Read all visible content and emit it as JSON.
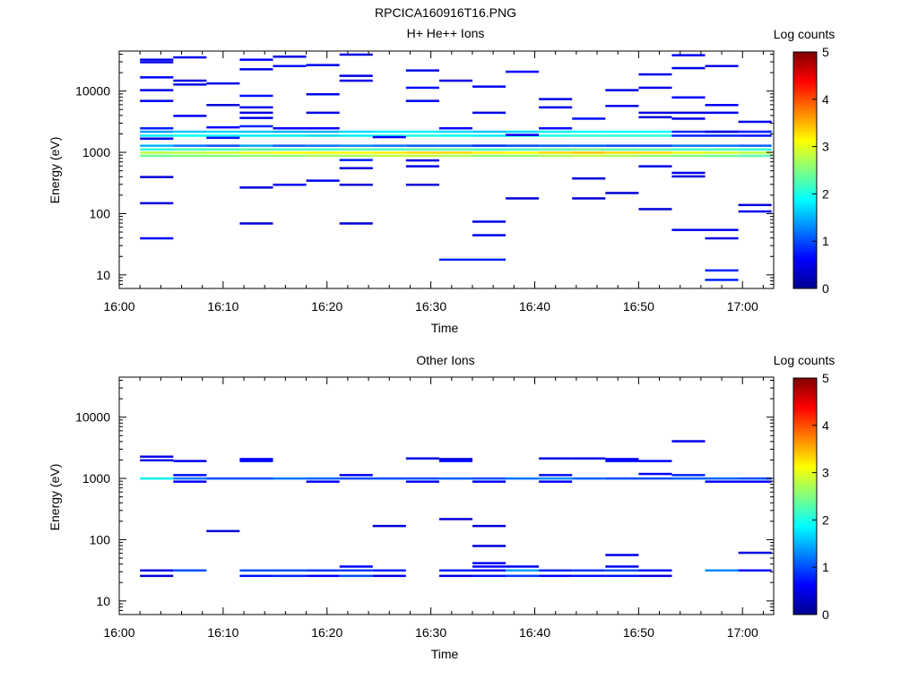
{
  "figure_title": "RPCICA160916T16.PNG",
  "chart_data": [
    {
      "type": "heatmap",
      "title": "H+ He++ Ions",
      "xlabel": "Time",
      "ylabel": "Energy (eV)",
      "colorbar_label": "Log counts",
      "colorbar_ticks": [
        "0",
        "1",
        "2",
        "3",
        "4",
        "5"
      ],
      "colorbar_range": [
        0,
        5
      ],
      "colormap": "jet",
      "x_ticks": [
        "16:00",
        "16:10",
        "16:20",
        "16:30",
        "16:40",
        "16:50",
        "17:00"
      ],
      "xlim_minutes": [
        0,
        63
      ],
      "y_scale": "log",
      "y_ticks": [
        "10",
        "100",
        "1000",
        "10000"
      ],
      "ylim": [
        6,
        45000
      ],
      "bin_minutes": 3.2,
      "cells": [
        {
          "t": 2,
          "e": 33000,
          "v": 0.5
        },
        {
          "t": 2,
          "e": 30000,
          "v": 0.5
        },
        {
          "t": 2,
          "e": 17000,
          "v": 0.6
        },
        {
          "t": 2,
          "e": 10500,
          "v": 0.5
        },
        {
          "t": 2,
          "e": 7000,
          "v": 0.5
        },
        {
          "t": 2,
          "e": 2500,
          "v": 0.8
        },
        {
          "t": 2,
          "e": 1700,
          "v": 0.5
        },
        {
          "t": 2,
          "e": 400,
          "v": 0.4
        },
        {
          "t": 2,
          "e": 150,
          "v": 0.4
        },
        {
          "t": 2,
          "e": 40,
          "v": 0.6
        },
        {
          "t": 5.2,
          "e": 36000,
          "v": 0.5
        },
        {
          "t": 5.2,
          "e": 15000,
          "v": 0.5
        },
        {
          "t": 5.2,
          "e": 13000,
          "v": 0.5
        },
        {
          "t": 5.2,
          "e": 4000,
          "v": 0.6
        },
        {
          "t": 8.4,
          "e": 13500,
          "v": 0.5
        },
        {
          "t": 8.4,
          "e": 6000,
          "v": 0.4
        },
        {
          "t": 8.4,
          "e": 2600,
          "v": 0.6
        },
        {
          "t": 8.4,
          "e": 1750,
          "v": 0.7
        },
        {
          "t": 11.6,
          "e": 33000,
          "v": 0.6
        },
        {
          "t": 11.6,
          "e": 23000,
          "v": 0.5
        },
        {
          "t": 11.6,
          "e": 8500,
          "v": 0.7
        },
        {
          "t": 11.6,
          "e": 5500,
          "v": 0.5
        },
        {
          "t": 11.6,
          "e": 4500,
          "v": 0.5
        },
        {
          "t": 11.6,
          "e": 3700,
          "v": 0.5
        },
        {
          "t": 11.6,
          "e": 2700,
          "v": 0.8
        },
        {
          "t": 11.6,
          "e": 270,
          "v": 0.4
        },
        {
          "t": 11.6,
          "e": 70,
          "v": 0.4
        },
        {
          "t": 14.8,
          "e": 37000,
          "v": 0.5
        },
        {
          "t": 14.8,
          "e": 26000,
          "v": 0.7
        },
        {
          "t": 14.8,
          "e": 2500,
          "v": 0.6
        },
        {
          "t": 14.8,
          "e": 300,
          "v": 0.6
        },
        {
          "t": 18,
          "e": 27000,
          "v": 0.5
        },
        {
          "t": 18,
          "e": 9000,
          "v": 0.5
        },
        {
          "t": 18,
          "e": 4500,
          "v": 0.5
        },
        {
          "t": 18,
          "e": 2500,
          "v": 0.6
        },
        {
          "t": 18,
          "e": 350,
          "v": 0.5
        },
        {
          "t": 21.2,
          "e": 40000,
          "v": 0.5
        },
        {
          "t": 21.2,
          "e": 18000,
          "v": 0.5
        },
        {
          "t": 21.2,
          "e": 15000,
          "v": 0.5
        },
        {
          "t": 21.2,
          "e": 760,
          "v": 0.8
        },
        {
          "t": 21.2,
          "e": 560,
          "v": 0.4
        },
        {
          "t": 21.2,
          "e": 300,
          "v": 0.4
        },
        {
          "t": 21.2,
          "e": 70,
          "v": 0.4
        },
        {
          "t": 24.4,
          "e": 1800,
          "v": 0.6
        },
        {
          "t": 27.6,
          "e": 22000,
          "v": 0.5
        },
        {
          "t": 27.6,
          "e": 11500,
          "v": 0.7
        },
        {
          "t": 27.6,
          "e": 7000,
          "v": 0.5
        },
        {
          "t": 27.6,
          "e": 750,
          "v": 0.5
        },
        {
          "t": 27.6,
          "e": 600,
          "v": 0.5
        },
        {
          "t": 27.6,
          "e": 300,
          "v": 0.4
        },
        {
          "t": 30.8,
          "e": 15000,
          "v": 0.5
        },
        {
          "t": 30.8,
          "e": 2500,
          "v": 0.6
        },
        {
          "t": 30.8,
          "e": 18,
          "v": 0.8
        },
        {
          "t": 34,
          "e": 12000,
          "v": 0.5
        },
        {
          "t": 34,
          "e": 4500,
          "v": 0.5
        },
        {
          "t": 34,
          "e": 1300,
          "v": 0.9
        },
        {
          "t": 34,
          "e": 75,
          "v": 0.5
        },
        {
          "t": 34,
          "e": 45,
          "v": 0.5
        },
        {
          "t": 34,
          "e": 18,
          "v": 0.8
        },
        {
          "t": 37.2,
          "e": 21000,
          "v": 0.6
        },
        {
          "t": 37.2,
          "e": 1950,
          "v": 0.6
        },
        {
          "t": 37.2,
          "e": 180,
          "v": 0.4
        },
        {
          "t": 40.4,
          "e": 7500,
          "v": 0.5
        },
        {
          "t": 40.4,
          "e": 5500,
          "v": 0.5
        },
        {
          "t": 40.4,
          "e": 2500,
          "v": 0.7
        },
        {
          "t": 43.6,
          "e": 3600,
          "v": 0.7
        },
        {
          "t": 43.6,
          "e": 380,
          "v": 0.4
        },
        {
          "t": 43.6,
          "e": 180,
          "v": 0.4
        },
        {
          "t": 46.8,
          "e": 10500,
          "v": 0.5
        },
        {
          "t": 46.8,
          "e": 5800,
          "v": 0.5
        },
        {
          "t": 46.8,
          "e": 220,
          "v": 0.4
        },
        {
          "t": 50,
          "e": 19000,
          "v": 0.5
        },
        {
          "t": 50,
          "e": 11500,
          "v": 0.5
        },
        {
          "t": 50,
          "e": 4500,
          "v": 0.5
        },
        {
          "t": 50,
          "e": 3800,
          "v": 0.5
        },
        {
          "t": 50,
          "e": 600,
          "v": 0.5
        },
        {
          "t": 50,
          "e": 120,
          "v": 0.4
        },
        {
          "t": 53.2,
          "e": 39000,
          "v": 0.6
        },
        {
          "t": 53.2,
          "e": 24000,
          "v": 0.5
        },
        {
          "t": 53.2,
          "e": 8000,
          "v": 0.6
        },
        {
          "t": 53.2,
          "e": 4500,
          "v": 0.5
        },
        {
          "t": 53.2,
          "e": 3600,
          "v": 0.5
        },
        {
          "t": 53.2,
          "e": 470,
          "v": 0.5
        },
        {
          "t": 53.2,
          "e": 410,
          "v": 0.4
        },
        {
          "t": 53.2,
          "e": 55,
          "v": 0.5
        },
        {
          "t": 56.4,
          "e": 26000,
          "v": 0.5
        },
        {
          "t": 56.4,
          "e": 6000,
          "v": 0.6
        },
        {
          "t": 56.4,
          "e": 4500,
          "v": 0.5
        },
        {
          "t": 56.4,
          "e": 2200,
          "v": 0.5
        },
        {
          "t": 56.4,
          "e": 55,
          "v": 0.5
        },
        {
          "t": 56.4,
          "e": 40,
          "v": 0.5
        },
        {
          "t": 56.4,
          "e": 12,
          "v": 0.8
        },
        {
          "t": 56.4,
          "e": 8.4,
          "v": 0.8
        },
        {
          "t": 59.6,
          "e": 3200,
          "v": 0.5
        },
        {
          "t": 59.6,
          "e": 2200,
          "v": 0.8
        },
        {
          "t": 59.6,
          "e": 140,
          "v": 0.4
        },
        {
          "t": 59.6,
          "e": 110,
          "v": 0.5
        }
      ],
      "bands": [
        {
          "e": 2200,
          "vals": [
            1.4,
            1.6,
            1.7,
            1.6,
            1.5,
            1.5,
            1.7,
            1.8,
            1.8,
            1.7,
            1.6,
            1.7,
            1.8,
            1.9,
            1.9,
            1.9,
            0.8,
            0.7,
            0.8
          ]
        },
        {
          "e": 1900,
          "vals": [
            1.8,
            1.9,
            1.9,
            1.8,
            1.8,
            1.7,
            1.8,
            2.0,
            2.0,
            1.9,
            1.8,
            1.9,
            2.0,
            2.1,
            2.1,
            2.1,
            0.8,
            0.8,
            0.7
          ]
        },
        {
          "e": 1300,
          "vals": [
            1.5,
            1.2,
            1.0,
            1.4,
            1.1,
            1.2,
            1.3,
            1.2,
            1.1,
            1.1,
            1.0,
            1.0,
            1.1,
            1.1,
            1.0,
            1.0,
            1.2,
            1.2,
            1.1
          ]
        },
        {
          "e": 1130,
          "vals": [
            2.1,
            2.2,
            2.2,
            2.3,
            2.2,
            2.2,
            2.3,
            2.2,
            2.3,
            2.3,
            2.2,
            2.2,
            2.3,
            2.4,
            2.3,
            2.3,
            2.2,
            2.2,
            2.1
          ]
        },
        {
          "e": 1000,
          "vals": [
            2.8,
            2.8,
            2.9,
            3.0,
            3.1,
            3.1,
            3.1,
            3.2,
            3.3,
            3.3,
            3.2,
            3.1,
            3.3,
            3.4,
            3.3,
            3.3,
            3.0,
            2.9,
            2.8
          ]
        },
        {
          "e": 890,
          "vals": [
            2.4,
            2.5,
            2.5,
            2.6,
            2.6,
            2.7,
            2.7,
            2.8,
            2.8,
            2.7,
            2.6,
            2.6,
            2.7,
            2.8,
            2.7,
            2.6,
            2.5,
            2.4,
            2.3
          ]
        }
      ]
    },
    {
      "type": "heatmap",
      "title": "Other Ions",
      "xlabel": "Time",
      "ylabel": "Energy (eV)",
      "colorbar_label": "Log counts",
      "colorbar_ticks": [
        "0",
        "1",
        "2",
        "3",
        "4",
        "5"
      ],
      "colorbar_range": [
        0,
        5
      ],
      "colormap": "jet",
      "x_ticks": [
        "16:00",
        "16:10",
        "16:20",
        "16:30",
        "16:40",
        "16:50",
        "17:00"
      ],
      "xlim_minutes": [
        0,
        63
      ],
      "y_scale": "log",
      "y_ticks": [
        "10",
        "100",
        "1000",
        "10000"
      ],
      "ylim": [
        6,
        45000
      ],
      "bin_minutes": 3.2,
      "cells": [
        {
          "t": 2,
          "e": 2300,
          "v": 0.5
        },
        {
          "t": 2,
          "e": 2000,
          "v": 0.5
        },
        {
          "t": 5.2,
          "e": 1950,
          "v": 0.5
        },
        {
          "t": 5.2,
          "e": 1150,
          "v": 0.7
        },
        {
          "t": 5.2,
          "e": 900,
          "v": 0.6
        },
        {
          "t": 8.4,
          "e": 140,
          "v": 0.4
        },
        {
          "t": 11.6,
          "e": 2100,
          "v": 0.6
        },
        {
          "t": 11.6,
          "e": 1950,
          "v": 0.7
        },
        {
          "t": 18,
          "e": 900,
          "v": 0.6
        },
        {
          "t": 21.2,
          "e": 1150,
          "v": 0.6
        },
        {
          "t": 24.4,
          "e": 170,
          "v": 0.4
        },
        {
          "t": 27.6,
          "e": 2150,
          "v": 0.5
        },
        {
          "t": 27.6,
          "e": 900,
          "v": 0.6
        },
        {
          "t": 30.8,
          "e": 2100,
          "v": 0.5
        },
        {
          "t": 30.8,
          "e": 1950,
          "v": 0.7
        },
        {
          "t": 30.8,
          "e": 220,
          "v": 0.4
        },
        {
          "t": 34,
          "e": 170,
          "v": 0.4
        },
        {
          "t": 34,
          "e": 80,
          "v": 0.4
        },
        {
          "t": 34,
          "e": 900,
          "v": 0.6
        },
        {
          "t": 40.4,
          "e": 2150,
          "v": 0.5
        },
        {
          "t": 40.4,
          "e": 1150,
          "v": 0.7
        },
        {
          "t": 40.4,
          "e": 900,
          "v": 0.6
        },
        {
          "t": 43.6,
          "e": 2150,
          "v": 0.5
        },
        {
          "t": 46.8,
          "e": 2100,
          "v": 0.6
        },
        {
          "t": 46.8,
          "e": 1950,
          "v": 0.7
        },
        {
          "t": 46.8,
          "e": 57,
          "v": 0.5
        },
        {
          "t": 50,
          "e": 1950,
          "v": 0.6
        },
        {
          "t": 50,
          "e": 1200,
          "v": 0.6
        },
        {
          "t": 53.2,
          "e": 4100,
          "v": 0.5
        },
        {
          "t": 53.2,
          "e": 1150,
          "v": 0.8
        },
        {
          "t": 56.4,
          "e": 900,
          "v": 0.6
        },
        {
          "t": 59.6,
          "e": 62,
          "v": 0.5
        },
        {
          "t": 59.6,
          "e": 900,
          "v": 0.6
        }
      ],
      "bands": [
        {
          "e": 1010,
          "vals": [
            1.8,
            1.2,
            1.0,
            1.0,
            1.2,
            1.1,
            1.0,
            1.0,
            1.0,
            1.1,
            1.0,
            1.2,
            1.3,
            1.1,
            1.0,
            1.0,
            1.1,
            1.1,
            1.0
          ]
        },
        {
          "e": 32,
          "vals": [
            0.5,
            1.0,
            null,
            1.0,
            1.0,
            0.9,
            0.9,
            0.8,
            null,
            0.8,
            0.7,
            1.4,
            0.8,
            0.9,
            1.0,
            0.7,
            null,
            1.3,
            0.7
          ]
        },
        {
          "e": 26,
          "vals": [
            0.4,
            null,
            null,
            0.7,
            0.8,
            0.6,
            1.0,
            0.5,
            null,
            0.5,
            0.7,
            0.9,
            0.6,
            0.7,
            0.7,
            0.5,
            null,
            null,
            null
          ]
        },
        {
          "e": 37,
          "vals": [
            null,
            null,
            null,
            null,
            null,
            null,
            0.6,
            null,
            null,
            null,
            0.6,
            0.5,
            null,
            null,
            0.5,
            null,
            null,
            null,
            null
          ]
        },
        {
          "e": 42,
          "vals": [
            null,
            null,
            null,
            null,
            null,
            null,
            null,
            null,
            null,
            null,
            0.6,
            null,
            null,
            null,
            null,
            null,
            null,
            null,
            null
          ]
        }
      ]
    }
  ]
}
